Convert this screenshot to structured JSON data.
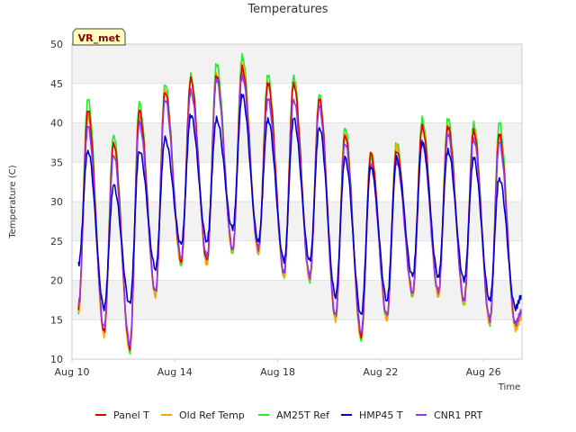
{
  "chart_data": {
    "type": "line",
    "title": "Temperatures",
    "xlabel": "Time",
    "ylabel": "Temperature (C)",
    "badge": "VR_met",
    "ylim": [
      10,
      50
    ],
    "xlim": [
      "2023-08-10",
      "2023-08-27T12:00"
    ],
    "x_ticks": [
      "Aug 10",
      "Aug 14",
      "Aug 18",
      "Aug 22",
      "Aug 26"
    ],
    "y_ticks": [
      10,
      15,
      20,
      25,
      30,
      35,
      40,
      45,
      50
    ],
    "grid": "horizontal bands",
    "legend_position": "bottom",
    "series_style": "diurnal cycle, daily max at mid-day, daily min before dawn",
    "daily": {
      "dates": [
        "Aug 10",
        "Aug 11",
        "Aug 12",
        "Aug 13",
        "Aug 14",
        "Aug 15",
        "Aug 16",
        "Aug 17",
        "Aug 18",
        "Aug 19",
        "Aug 20",
        "Aug 21",
        "Aug 22",
        "Aug 23",
        "Aug 24",
        "Aug 25",
        "Aug 26",
        "Aug 27"
      ],
      "note": "values per series: daily minimum then daily maximum"
    },
    "series": [
      {
        "name": "Panel T",
        "color": "#dd0000",
        "min": [
          16.5,
          13.5,
          11.5,
          18.5,
          22.5,
          22.5,
          24.0,
          24.0,
          21.0,
          20.5,
          15.5,
          13.0,
          15.5,
          18.5,
          18.5,
          17.5,
          15.0,
          14.5
        ],
        "max": [
          41.5,
          37.5,
          41.5,
          44.0,
          45.5,
          46.0,
          47.0,
          45.0,
          45.0,
          43.0,
          38.5,
          36.0,
          36.5,
          39.5,
          39.5,
          39.0,
          38.5,
          38.5
        ]
      },
      {
        "name": "Old Ref Temp",
        "color": "#ffa500",
        "min": [
          16.0,
          13.0,
          11.0,
          18.0,
          22.0,
          22.0,
          23.5,
          23.5,
          20.5,
          20.0,
          15.0,
          12.5,
          15.0,
          18.0,
          18.0,
          17.0,
          14.5,
          13.8
        ],
        "max": [
          41.0,
          37.0,
          41.0,
          44.0,
          45.5,
          46.0,
          47.5,
          45.0,
          45.0,
          43.0,
          38.5,
          36.5,
          37.0,
          39.5,
          39.5,
          39.0,
          38.5,
          38.0
        ]
      },
      {
        "name": "AM25T Ref",
        "color": "#22ee22",
        "min": [
          16.0,
          13.5,
          11.0,
          18.0,
          22.0,
          22.0,
          23.5,
          23.5,
          20.5,
          20.0,
          15.0,
          12.5,
          15.0,
          18.0,
          18.0,
          17.0,
          14.5,
          14.0
        ],
        "max": [
          43.0,
          38.5,
          42.5,
          45.0,
          46.0,
          47.5,
          48.5,
          46.0,
          46.0,
          43.5,
          39.5,
          35.5,
          37.5,
          40.5,
          40.5,
          40.0,
          40.0,
          39.5
        ]
      },
      {
        "name": "HMP45 T",
        "color": "#0000cc",
        "min": [
          22.0,
          16.5,
          17.0,
          21.5,
          24.5,
          25.0,
          26.5,
          25.0,
          22.5,
          22.5,
          18.0,
          15.5,
          17.5,
          20.5,
          20.5,
          20.0,
          17.5,
          16.5
        ],
        "max": [
          36.5,
          32.0,
          36.5,
          38.0,
          41.0,
          40.5,
          43.5,
          40.5,
          40.5,
          39.5,
          35.5,
          34.5,
          35.5,
          37.5,
          36.5,
          35.5,
          33.0,
          33.0
        ]
      },
      {
        "name": "CNR1 PRT",
        "color": "#9933ee",
        "min": [
          17.0,
          14.0,
          12.0,
          18.5,
          23.0,
          23.0,
          24.0,
          24.0,
          21.0,
          20.5,
          15.5,
          13.5,
          15.5,
          18.5,
          18.5,
          17.5,
          15.0,
          14.5
        ],
        "max": [
          39.5,
          36.0,
          40.0,
          43.0,
          44.0,
          45.5,
          46.0,
          43.0,
          43.0,
          42.0,
          37.5,
          34.5,
          35.0,
          37.5,
          38.5,
          38.0,
          37.5,
          37.0
        ]
      }
    ]
  }
}
